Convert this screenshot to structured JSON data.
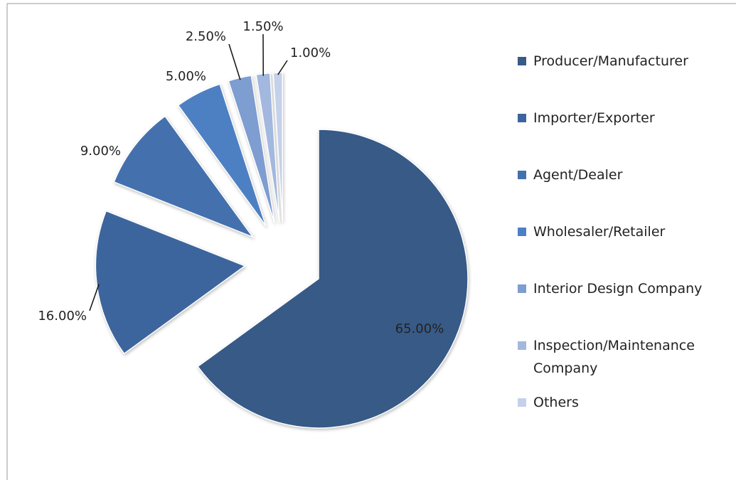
{
  "chart_data": {
    "type": "pie",
    "categories": [
      "Producer/Manufacturer",
      "Importer/Exporter",
      "Agent/Dealer",
      "Wholesaler/Retailer",
      "Interior Design Company",
      "Inspection/Maintenance Company",
      "Others"
    ],
    "values": [
      65,
      16,
      9,
      5,
      2.5,
      1.5,
      1
    ],
    "value_labels": [
      "65.00%",
      "16.00%",
      "9.00%",
      "5.00%",
      "2.50%",
      "1.50%",
      "1.00%"
    ],
    "colors": [
      "#375a87",
      "#3d659d",
      "#4471ae",
      "#4d80c3",
      "#7e9dd0",
      "#a3b8de",
      "#c5d1ea"
    ],
    "legend": "right"
  }
}
